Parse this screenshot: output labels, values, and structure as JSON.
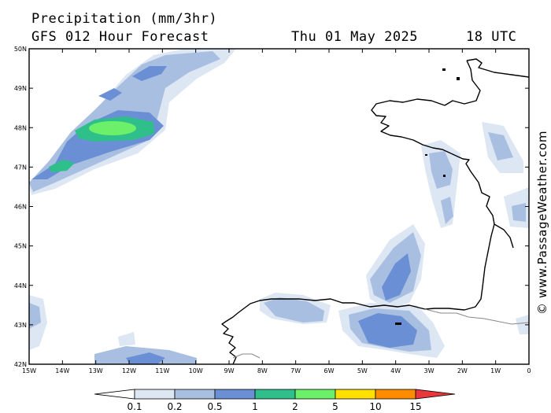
{
  "header": {
    "title": "Precipitation (mm/3hr)",
    "subtitle": "GFS 012 Hour Forecast",
    "date": "Thu 01 May 2025",
    "time": "18 UTC"
  },
  "watermark": "© www.PassageWeather.com",
  "axes": {
    "longitude_labels": [
      "15W",
      "14W",
      "13W",
      "12W",
      "11W",
      "10W",
      "9W",
      "8W",
      "7W",
      "6W",
      "5W",
      "4W",
      "3W",
      "2W",
      "1W",
      "0"
    ],
    "latitude_labels": [
      "50N",
      "49N",
      "48N",
      "47N",
      "46N",
      "45N",
      "44N",
      "43N",
      "42N"
    ],
    "lon_range": [
      -15,
      0
    ],
    "lat_range": [
      42,
      50
    ]
  },
  "legend": {
    "units": "mm/3hr",
    "thresholds": [
      "0.1",
      "0.2",
      "0.5",
      "1",
      "2",
      "5",
      "10",
      "15"
    ],
    "colors": [
      "#ffffff",
      "#dde6f3",
      "#a9bfe1",
      "#6a8fd4",
      "#2fbf8a",
      "#6cf06a",
      "#ffe000",
      "#ff8c00",
      "#e8363c"
    ]
  },
  "precip_colors": {
    "light": "#dde6f3",
    "lightmed": "#a9bfe1",
    "medium": "#6a8fd4",
    "teal": "#2fbf8a",
    "green": "#6cf06a"
  }
}
